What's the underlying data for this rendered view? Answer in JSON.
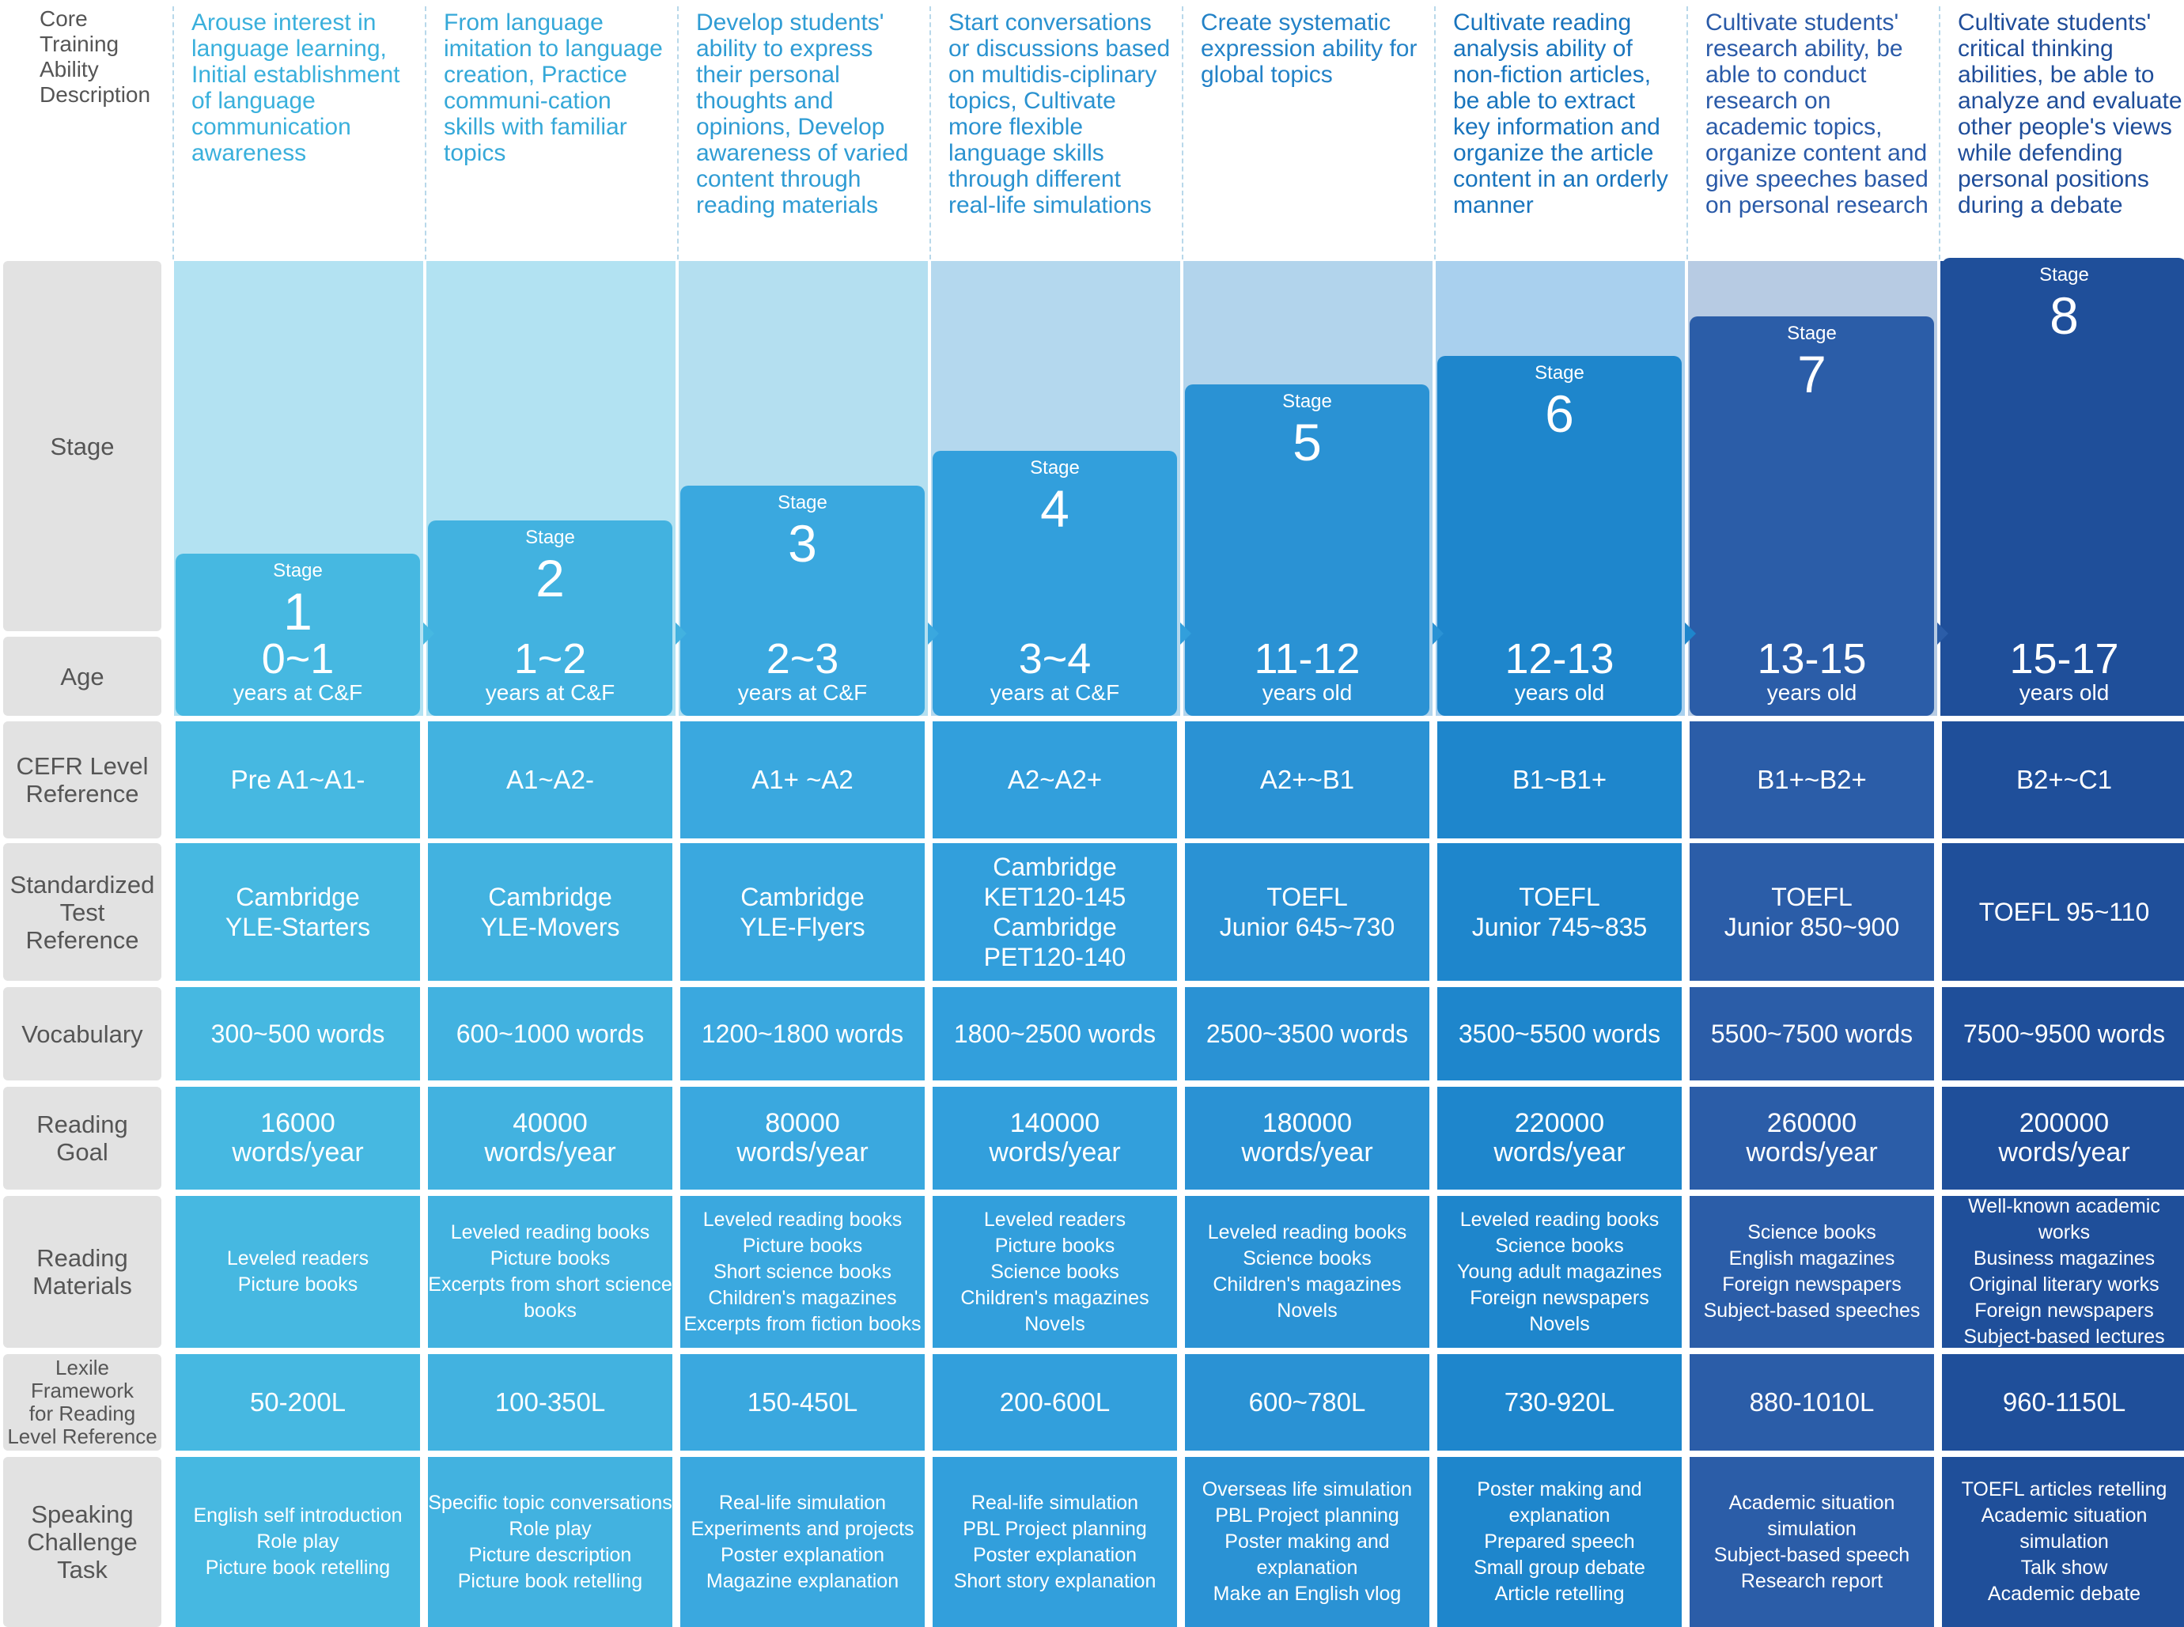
{
  "row_labels": {
    "core": "Core\nTraining\nAbility\nDescription",
    "stage": "Stage",
    "age": "Age",
    "cefr": "CEFR Level\nReference",
    "test": "Standardized\nTest\nReference",
    "vocab": "Vocabulary",
    "reading_goal": "Reading\nGoal",
    "materials": "Reading\nMaterials",
    "lexile": "Lexile\nFramework\nfor Reading\nLevel Reference",
    "speaking": "Speaking\nChallenge\nTask"
  },
  "stage_word": "Stage",
  "stages": [
    {
      "num": "1",
      "age": "0~1",
      "age_unit": "years at C&F",
      "desc": "Arouse interest in language learning, Initial establishment of language communication awareness",
      "cefr": "Pre A1~A1-",
      "test": "Cambridge\nYLE-Starters",
      "vocab": "300~500 words",
      "reading_goal": "16000\nwords/year",
      "materials": "Leveled readers\nPicture books",
      "lexile": "50-200L",
      "speaking": "English self introduction\nRole play\nPicture book retelling",
      "color": "#46b8e1",
      "desc_color": "#3ab0dc"
    },
    {
      "num": "2",
      "age": "1~2",
      "age_unit": "years at C&F",
      "desc": "From language imitation to language creation, Practice communi-cation skills with familiar topics",
      "cefr": "A1~A2-",
      "test": "Cambridge\nYLE-Movers",
      "vocab": "600~1000 words",
      "reading_goal": "40000\nwords/year",
      "materials": "Leveled reading books\nPicture books\nExcerpts from short science books",
      "lexile": "100-350L",
      "speaking": "Specific topic conversations\nRole play\nPicture description\nPicture book retelling",
      "color": "#42b2e0",
      "desc_color": "#35a8d8"
    },
    {
      "num": "3",
      "age": "2~3",
      "age_unit": "years at C&F",
      "desc": "Develop students' ability to express their personal thoughts and opinions, Develop awareness of varied content through reading materials",
      "cefr": "A1+ ~A2",
      "test": "Cambridge\nYLE-Flyers",
      "vocab": "1200~1800 words",
      "reading_goal": "80000\nwords/year",
      "materials": "Leveled reading books\nPicture books\nShort science books\nChildren's magazines\nExcerpts from fiction books",
      "lexile": "150-450L",
      "speaking": "Real-life simulation\nExperiments and projects\nPoster explanation\nMagazine explanation",
      "color": "#3aa8df",
      "desc_color": "#2f9cd4"
    },
    {
      "num": "4",
      "age": "3~4",
      "age_unit": "years at C&F",
      "desc": "Start conversations or discussions based on multidis-ciplinary topics, Cultivate more flexible language skills through different real-life simulations",
      "cefr": "A2~A2+",
      "test": "Cambridge\nKET120-145\nCambridge\nPET120-140",
      "vocab": "1800~2500 words",
      "reading_goal": "140000\nwords/year",
      "materials": "Leveled readers\nPicture books\nScience books\nChildren's magazines\nNovels",
      "lexile": "200-600L",
      "speaking": "Real-life simulation\nPBL Project planning\nPoster explanation\nShort story explanation",
      "color": "#329fdc",
      "desc_color": "#2a92d0"
    },
    {
      "num": "5",
      "age": "11-12",
      "age_unit": "years old",
      "desc": "Create systematic expression ability for global topics",
      "cefr": "A2+~B1",
      "test": "TOEFL\nJunior 645~730",
      "vocab": "2500~3500 words",
      "reading_goal": "180000\nwords/year",
      "materials": "Leveled reading books\nScience books\nChildren's magazines\nNovels",
      "lexile": "600~780L",
      "speaking": "Overseas life simulation\nPBL Project planning\nPoster making and explanation\nMake an English vlog",
      "color": "#2a92d4",
      "desc_color": "#2382c7"
    },
    {
      "num": "6",
      "age": "12-13",
      "age_unit": "years old",
      "desc": "Cultivate reading analysis ability of non-fiction articles, be able to extract key information and organize the article content in an orderly manner",
      "cefr": "B1~B1+",
      "test": "TOEFL\nJunior 745~835",
      "vocab": "3500~5500 words",
      "reading_goal": "220000\nwords/year",
      "materials": "Leveled reading books\nScience books\nYoung adult magazines\nForeign newspapers\nNovels",
      "lexile": "730-920L",
      "speaking": "Poster making and explanation\nPrepared speech\nSmall group debate\nArticle retelling",
      "color": "#1e86cc",
      "desc_color": "#1874bd"
    },
    {
      "num": "7",
      "age": "13-15",
      "age_unit": "years old",
      "desc": "Cultivate students' research ability, be able to conduct research on academic topics, organize content and give speeches based on personal research",
      "cefr": "B1+~B2+",
      "test": "TOEFL\nJunior 850~900",
      "vocab": "5500~7500 words",
      "reading_goal": "260000\nwords/year",
      "materials": "Science books\nEnglish magazines\nForeign newspapers\nSubject-based speeches",
      "lexile": "880-1010L",
      "speaking": "Academic situation simulation\nSubject-based speech\nResearch report",
      "color": "#2b5da8",
      "desc_color": "#2a5aa8"
    },
    {
      "num": "8",
      "age": "15-17",
      "age_unit": "years old",
      "desc": "Cultivate students' critical thinking abilities, be able to analyze and evaluate other people's views while defending personal positions during a debate",
      "cefr": "B2+~C1",
      "test": "TOEFL 95~110",
      "vocab": "7500~9500 words",
      "reading_goal": "200000\nwords/year",
      "materials": "Well-known academic works\nBusiness magazines\nOriginal literary works\nForeign newspapers\nSubject-based lectures",
      "lexile": "960-1150L",
      "speaking": "TOEFL articles retelling\nAcademic situation simulation\nTalk show\nAcademic debate",
      "color": "#1f4f9a",
      "desc_color": "#1f4d99"
    }
  ]
}
